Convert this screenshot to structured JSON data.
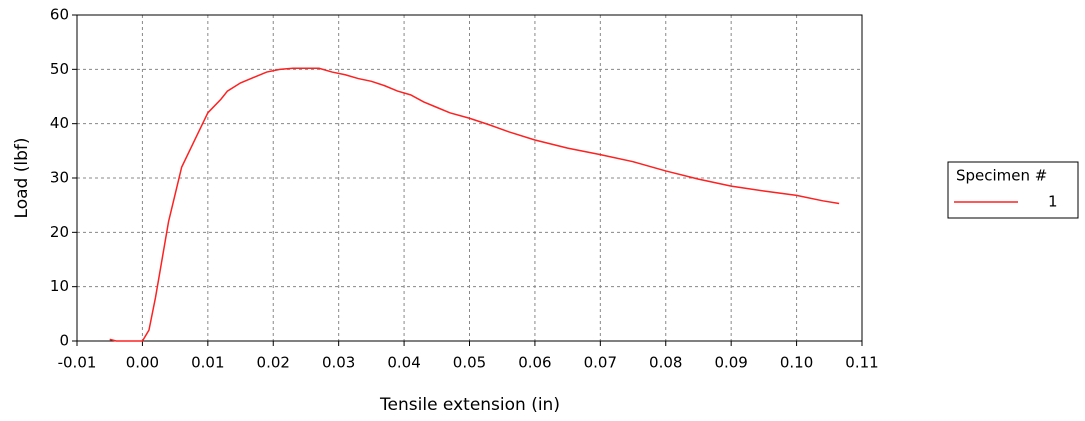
{
  "chart_data": {
    "type": "line",
    "x_label": "Tensile extension (in)",
    "y_label": "Load (lbf)",
    "legend_title": "Specimen #",
    "legend": "right",
    "grid": true,
    "x": [
      -0.005,
      -0.004,
      0.0,
      0.001,
      0.002,
      0.003,
      0.004,
      0.005,
      0.006,
      0.008,
      0.01,
      0.012,
      0.013,
      0.015,
      0.017,
      0.019,
      0.021,
      0.023,
      0.025,
      0.027,
      0.029,
      0.031,
      0.033,
      0.035,
      0.037,
      0.039,
      0.041,
      0.043,
      0.045,
      0.047,
      0.05,
      0.053,
      0.056,
      0.06,
      0.065,
      0.07,
      0.075,
      0.08,
      0.085,
      0.09,
      0.095,
      0.1,
      0.104,
      0.1065
    ],
    "series": [
      {
        "name": "1",
        "color": "#ff2020",
        "values": [
          0.3,
          0,
          0,
          2,
          8,
          15,
          22,
          27,
          32,
          37,
          42,
          44.5,
          46,
          47.5,
          48.5,
          49.5,
          50,
          50.2,
          50.2,
          50.2,
          49.5,
          49,
          48.3,
          47.8,
          47,
          46,
          45.3,
          44,
          43,
          42,
          41,
          39.8,
          38.5,
          37,
          35.5,
          34.3,
          33,
          31.3,
          29.8,
          28.5,
          27.6,
          26.8,
          25.8,
          25.3
        ]
      }
    ],
    "xlim": [
      -0.01,
      0.11
    ],
    "ylim": [
      0,
      60
    ],
    "xticks": [
      -0.01,
      {
        "value": 0,
        "label": "0.00"
      },
      0.01,
      0.02,
      0.03,
      0.04,
      0.05,
      0.06,
      0.07,
      0.08,
      0.09,
      {
        "value": 0.1,
        "label": "0.10"
      },
      0.11
    ],
    "yticks": [
      0,
      10,
      20,
      30,
      40,
      50,
      60
    ]
  }
}
